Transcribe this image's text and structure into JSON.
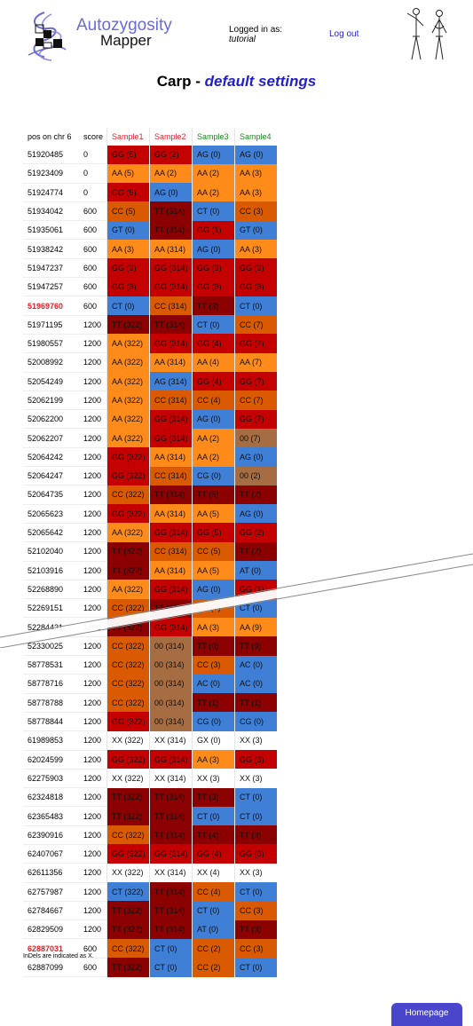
{
  "header": {
    "logo_line1": "Autozygosity",
    "logo_line2": "Mapper",
    "login_label": "Logged in as:",
    "login_user": "tutorial",
    "logout_label": "Log out"
  },
  "title": {
    "main": "Carp - ",
    "sub": "default settings"
  },
  "table": {
    "headers": [
      "pos on chr 6",
      "score",
      "Sample1",
      "Sample2",
      "Sample3",
      "Sample4"
    ],
    "header_colors": [
      "#000000",
      "#000000",
      "#e0202a",
      "#e0202a",
      "#1a8a1a",
      "#1a8a1a"
    ],
    "colors": {
      "GG": "#c40000",
      "AA": "#ff8c1a",
      "CC": "#d95a00",
      "TT": "#8b0000",
      "AG": "#3f7fd6",
      "CT": "#3f7fd6",
      "GT": "#3f7fd6",
      "AC": "#3f7fd6",
      "CG": "#3f7fd6",
      "AT": "#3f7fd6",
      "00": "#a66c42",
      "XX": "#ffffff",
      "GX": "#ffffff"
    },
    "rows": [
      {
        "pos": "51920485",
        "score": "0",
        "hl": false,
        "s": [
          "GG (5)",
          "GG (2)",
          "AG (0)",
          "AG (0)"
        ]
      },
      {
        "pos": "51923409",
        "score": "0",
        "hl": false,
        "s": [
          "AA (5)",
          "AA (2)",
          "AA (2)",
          "AA (3)"
        ]
      },
      {
        "pos": "51924774",
        "score": "0",
        "hl": false,
        "s": [
          "GG (5)",
          "AG (0)",
          "AA (2)",
          "AA (3)"
        ]
      },
      {
        "pos": "51934042",
        "score": "600",
        "hl": false,
        "s": [
          "CC (5)",
          "TT (314)",
          "CT (0)",
          "CC (3)"
        ]
      },
      {
        "pos": "51935061",
        "score": "600",
        "hl": false,
        "s": [
          "GT (0)",
          "TT (314)",
          "GG (1)",
          "GT (0)"
        ]
      },
      {
        "pos": "51938242",
        "score": "600",
        "hl": false,
        "s": [
          "AA (3)",
          "AA (314)",
          "AG (0)",
          "AA (3)"
        ]
      },
      {
        "pos": "51947237",
        "score": "600",
        "hl": false,
        "s": [
          "GG (3)",
          "GG (314)",
          "GG (3)",
          "GG (3)"
        ]
      },
      {
        "pos": "51947257",
        "score": "600",
        "hl": false,
        "s": [
          "GG (3)",
          "GG (314)",
          "GG (3)",
          "GG (3)"
        ]
      },
      {
        "pos": "51969760",
        "score": "600",
        "hl": true,
        "s": [
          "CT (0)",
          "CC (314)",
          "TT (3)",
          "CT (0)"
        ]
      },
      {
        "pos": "51971195",
        "score": "1200",
        "hl": false,
        "s": [
          "TT (322)",
          "TT (314)",
          "CT (0)",
          "CC (7)"
        ]
      },
      {
        "pos": "51980557",
        "score": "1200",
        "hl": false,
        "s": [
          "AA (322)",
          "GG (314)",
          "GG (4)",
          "GG (7)"
        ]
      },
      {
        "pos": "52008992",
        "score": "1200",
        "hl": false,
        "s": [
          "AA (322)",
          "AA (314)",
          "AA (4)",
          "AA (7)"
        ]
      },
      {
        "pos": "52054249",
        "score": "1200",
        "hl": false,
        "s": [
          "AA (322)",
          "AG (314)",
          "GG (4)",
          "GG (7)"
        ]
      },
      {
        "pos": "52062199",
        "score": "1200",
        "hl": false,
        "s": [
          "AA (322)",
          "CC (314)",
          "CC (4)",
          "CC (7)"
        ]
      },
      {
        "pos": "52062200",
        "score": "1200",
        "hl": false,
        "s": [
          "AA (322)",
          "GG (314)",
          "AG (0)",
          "GG (7)"
        ]
      },
      {
        "pos": "52062207",
        "score": "1200",
        "hl": false,
        "s": [
          "AA (322)",
          "GG (314)",
          "AA (2)",
          "00 (7)"
        ]
      },
      {
        "pos": "52064242",
        "score": "1200",
        "hl": false,
        "s": [
          "GG (322)",
          "AA (314)",
          "AA (2)",
          "AG (0)"
        ]
      },
      {
        "pos": "52064247",
        "score": "1200",
        "hl": false,
        "s": [
          "GG (322)",
          "CC (314)",
          "CG (0)",
          "00 (2)"
        ]
      },
      {
        "pos": "52064735",
        "score": "1200",
        "hl": false,
        "s": [
          "CC (322)",
          "TT (314)",
          "TT (5)",
          "TT (2)"
        ]
      },
      {
        "pos": "52065623",
        "score": "1200",
        "hl": false,
        "s": [
          "GG (322)",
          "AA (314)",
          "AA (5)",
          "AG (0)"
        ]
      },
      {
        "pos": "52065642",
        "score": "1200",
        "hl": false,
        "s": [
          "AA (322)",
          "GG (314)",
          "GG (5)",
          "GG (2)"
        ]
      },
      {
        "pos": "52102040",
        "score": "1200",
        "hl": false,
        "s": [
          "TT (322)",
          "CC (314)",
          "CC (5)",
          "TT (2)"
        ]
      },
      {
        "pos": "52103916",
        "score": "1200",
        "hl": false,
        "s": [
          "TT (322)",
          "AA (314)",
          "AA (5)",
          "AT (0)"
        ]
      },
      {
        "pos": "52268890",
        "score": "1200",
        "hl": false,
        "s": [
          "AA (322)",
          "GG (314)",
          "AG (0)",
          "GG (1)"
        ]
      },
      {
        "pos": "52269151",
        "score": "1200",
        "hl": false,
        "s": [
          "CC (322)",
          "TT (314)",
          "CC (7)",
          "CT (0)"
        ]
      },
      {
        "pos": "52284431",
        "score": "1200",
        "hl": false,
        "s": [
          "TT (322)",
          "GG (314)",
          "AA (3)",
          "AA (9)"
        ]
      },
      {
        "pos": "52330025",
        "score": "1200",
        "hl": false,
        "s": [
          "CC (322)",
          "00 (314)",
          "TT (0)",
          "TT (9)"
        ]
      },
      {
        "pos": "58778531",
        "score": "1200",
        "hl": false,
        "s": [
          "CC (322)",
          "00 (314)",
          "CC (3)",
          "AC (0)"
        ]
      },
      {
        "pos": "58778716",
        "score": "1200",
        "hl": false,
        "s": [
          "CC (322)",
          "00 (314)",
          "AC (0)",
          "AC (0)"
        ]
      },
      {
        "pos": "58778788",
        "score": "1200",
        "hl": false,
        "s": [
          "CC (322)",
          "00 (314)",
          "TT (1)",
          "TT (1)"
        ]
      },
      {
        "pos": "58778844",
        "score": "1200",
        "hl": false,
        "s": [
          "GG (322)",
          "00 (314)",
          "CG (0)",
          "CG (0)"
        ]
      },
      {
        "pos": "61989853",
        "score": "1200",
        "hl": false,
        "s": [
          "XX (322)",
          "XX (314)",
          "GX (0)",
          "XX (3)"
        ]
      },
      {
        "pos": "62024599",
        "score": "1200",
        "hl": false,
        "s": [
          "GG (322)",
          "GG (314)",
          "AA (3)",
          "GG (3)"
        ]
      },
      {
        "pos": "62275903",
        "score": "1200",
        "hl": false,
        "s": [
          "XX (322)",
          "XX (314)",
          "XX (3)",
          "XX (3)"
        ]
      },
      {
        "pos": "62324818",
        "score": "1200",
        "hl": false,
        "s": [
          "TT (322)",
          "TT (314)",
          "TT (3)",
          "CT (0)"
        ]
      },
      {
        "pos": "62365483",
        "score": "1200",
        "hl": false,
        "s": [
          "TT (322)",
          "TT (314)",
          "CT (0)",
          "CT (0)"
        ]
      },
      {
        "pos": "62390916",
        "score": "1200",
        "hl": false,
        "s": [
          "CC (322)",
          "TT (314)",
          "TT (4)",
          "TT (3)"
        ]
      },
      {
        "pos": "62407067",
        "score": "1200",
        "hl": false,
        "s": [
          "GG (322)",
          "GG (314)",
          "GG (4)",
          "GG (3)"
        ]
      },
      {
        "pos": "62611356",
        "score": "1200",
        "hl": false,
        "s": [
          "XX (322)",
          "XX (314)",
          "XX (4)",
          "XX (3)"
        ]
      },
      {
        "pos": "62757987",
        "score": "1200",
        "hl": false,
        "s": [
          "CT (322)",
          "TT (314)",
          "CC (4)",
          "CT (0)"
        ]
      },
      {
        "pos": "62784667",
        "score": "1200",
        "hl": false,
        "s": [
          "TT (322)",
          "TT (314)",
          "CT (0)",
          "CC (3)"
        ]
      },
      {
        "pos": "62829509",
        "score": "1200",
        "hl": false,
        "s": [
          "TT (322)",
          "TT (314)",
          "AT (0)",
          "TT (3)"
        ]
      },
      {
        "pos": "62887031",
        "score": "600",
        "hl": true,
        "s": [
          "CC (322)",
          "CT (0)",
          "CC (2)",
          "CC (3)"
        ]
      },
      {
        "pos": "62887099",
        "score": "600",
        "hl": false,
        "s": [
          "TT (322)",
          "CT (0)",
          "CC (2)",
          "CT (0)"
        ]
      }
    ]
  },
  "note": "InDels are indicated as X.",
  "homepage_label": "Homepage"
}
